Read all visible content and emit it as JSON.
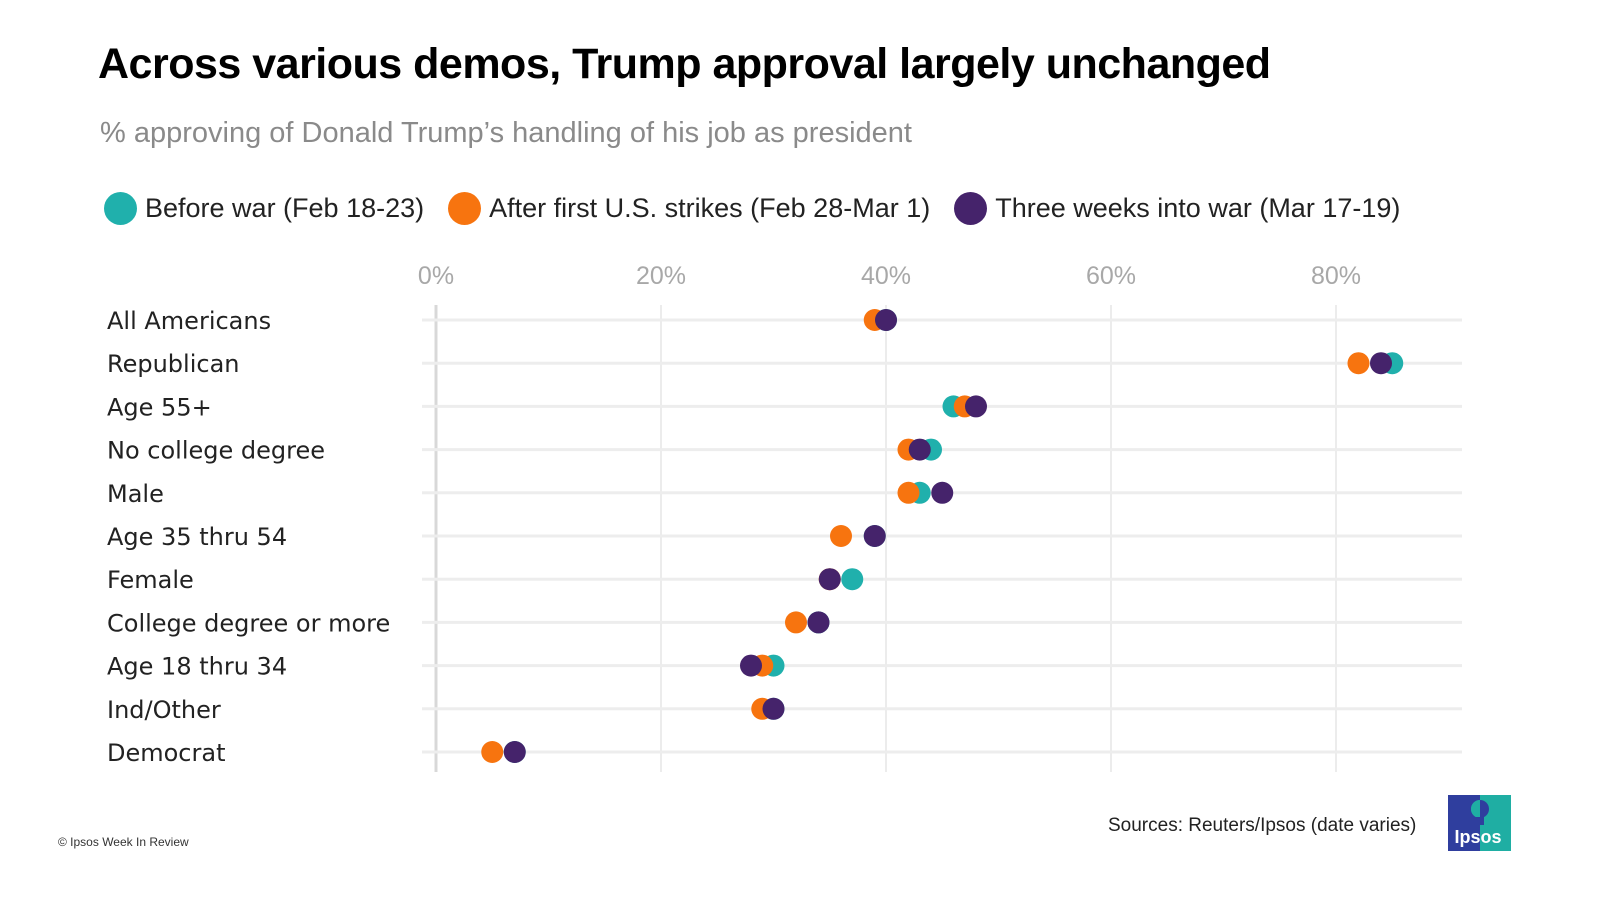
{
  "header": {
    "title": "Across various demos, Trump approval largely unchanged",
    "subtitle": "% approving of Donald Trump’s handling of his  job as president"
  },
  "legend": [
    {
      "label": "Before war (Feb 18-23)",
      "color": "#20b0ac"
    },
    {
      "label": "After first U.S. strikes (Feb 28-Mar 1)",
      "color": "#f7740f"
    },
    {
      "label": "Three weeks into war (Mar 17-19)",
      "color": "#45236b"
    }
  ],
  "chart_data": {
    "type": "scatter",
    "subtype": "dot-plot",
    "title": "Across various demos, Trump approval largely unchanged",
    "subtitle": "% approving of Donald Trump’s handling of his  job as president",
    "xlabel": "",
    "ylabel": "",
    "xlim": [
      0,
      90
    ],
    "x_ticks": [
      0,
      20,
      40,
      60,
      80
    ],
    "x_tick_labels": [
      "0%",
      "20%",
      "40%",
      "60%",
      "80%"
    ],
    "grid": true,
    "legend_position": "top",
    "categories": [
      "All Americans",
      "Republican",
      "Age 55+",
      "No college degree",
      "Male",
      "Age 35 thru 54",
      "Female",
      "College degree or more",
      "Age 18 thru 34",
      "Ind/Other",
      "Democrat"
    ],
    "series": [
      {
        "name": "Before war (Feb 18-23)",
        "color": "#20b0ac",
        "values": [
          40,
          85,
          46,
          44,
          43,
          39,
          37,
          34,
          30,
          30,
          7
        ]
      },
      {
        "name": "After first U.S. strikes (Feb 28-Mar 1)",
        "color": "#f7740f",
        "values": [
          39,
          82,
          47,
          42,
          42,
          36,
          35,
          32,
          29,
          29,
          5
        ]
      },
      {
        "name": "Three weeks into war (Mar 17-19)",
        "color": "#45236b",
        "values": [
          40,
          84,
          48,
          43,
          45,
          39,
          35,
          34,
          28,
          30,
          7
        ]
      }
    ]
  },
  "footer": {
    "source": "Sources: Reuters/Ipsos (date varies)",
    "copyright": "© Ipsos Week In Review",
    "logo_text": "Ipsos"
  }
}
